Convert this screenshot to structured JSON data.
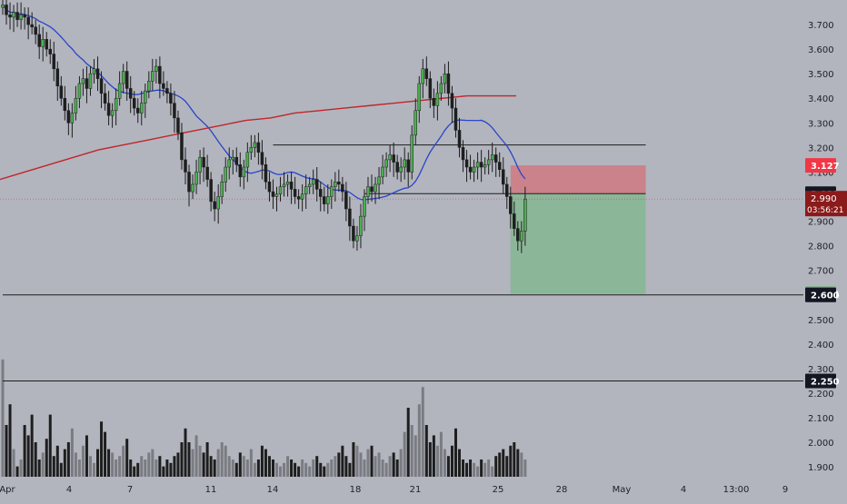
{
  "colors": {
    "background": "#b2b5be",
    "up_candle": "#4caf50",
    "down_candle": "#1e1e1e",
    "ma_fast": "#2a45c9",
    "ma_slow": "#c0262b",
    "stop_zone": "#e0585f",
    "target_zone": "#5db86a",
    "axis_text": "#1f1f24",
    "level_line": "#1e1e1e"
  },
  "price_axis": {
    "ticks": [
      "3.700",
      "3.600",
      "3.500",
      "3.400",
      "3.300",
      "3.200",
      "3.100",
      "3.000",
      "2.900",
      "2.800",
      "2.700",
      "2.600",
      "2.500",
      "2.400",
      "2.300",
      "2.200",
      "2.100",
      "2.000",
      "1.900"
    ],
    "tags": [
      {
        "label": "3.127",
        "price": 3.127,
        "bg": "#f23645",
        "fg": "#ffffff"
      },
      {
        "label": "3.012",
        "price": 3.012,
        "bg": "#131722",
        "fg": "#ffffff"
      },
      {
        "label": "2.604",
        "price": 2.604,
        "bg": "#4caf50",
        "fg": "#ffffff"
      },
      {
        "label": "2.600",
        "price": 2.6,
        "bg": "#131722",
        "fg": "#ffffff"
      },
      {
        "label": "2.250",
        "price": 2.25,
        "bg": "#131722",
        "fg": "#ffffff"
      }
    ],
    "current_price": {
      "price": "2.990",
      "countdown": "03:56:21",
      "bg": "#8b1a1a",
      "fg": "#ffffff"
    }
  },
  "time_axis": {
    "labels": [
      "Apr",
      "4",
      "7",
      "11",
      "14",
      "18",
      "21",
      "25",
      "28",
      "May",
      "4",
      "13:00",
      "9"
    ]
  },
  "chart_data": {
    "type": "candlestick",
    "series": [],
    "ylim": [
      1.86,
      3.8
    ],
    "horizontal_levels": [
      {
        "price": 3.21,
        "from_bar": 74,
        "to_bar": 176
      },
      {
        "price": 3.012,
        "from_bar": 99,
        "to_bar": 176
      },
      {
        "price": 2.6,
        "from_bar": 0,
        "to_bar": null
      },
      {
        "price": 2.25,
        "from_bar": 0,
        "to_bar": null
      }
    ],
    "position": {
      "entry": 3.012,
      "stop": 3.127,
      "target": 2.604,
      "from_bar": 139,
      "to_bar": 176
    },
    "candles_close": [
      3.78,
      3.74,
      3.73,
      3.75,
      3.72,
      3.74,
      3.73,
      3.7,
      3.69,
      3.66,
      3.61,
      3.64,
      3.6,
      3.58,
      3.52,
      3.45,
      3.4,
      3.35,
      3.3,
      3.34,
      3.4,
      3.46,
      3.48,
      3.44,
      3.5,
      3.52,
      3.48,
      3.42,
      3.38,
      3.33,
      3.35,
      3.4,
      3.46,
      3.51,
      3.44,
      3.4,
      3.36,
      3.34,
      3.38,
      3.43,
      3.47,
      3.51,
      3.53,
      3.46,
      3.44,
      3.42,
      3.38,
      3.32,
      3.26,
      3.15,
      3.1,
      3.02,
      3.05,
      3.1,
      3.16,
      3.12,
      3.07,
      2.98,
      2.95,
      3.0,
      3.06,
      3.12,
      3.15,
      3.16,
      3.13,
      3.08,
      3.12,
      3.18,
      3.2,
      3.22,
      3.18,
      3.13,
      3.06,
      3.02,
      3.0,
      3.01,
      3.04,
      3.05,
      3.06,
      3.03,
      3.0,
      2.99,
      3.01,
      3.04,
      3.05,
      3.07,
      3.03,
      3.0,
      2.97,
      3.0,
      3.04,
      3.06,
      3.05,
      3.02,
      2.95,
      2.88,
      2.82,
      2.84,
      2.92,
      3.0,
      3.04,
      3.02,
      3.05,
      3.08,
      3.12,
      3.15,
      3.17,
      3.14,
      3.1,
      3.12,
      3.15,
      3.1,
      3.25,
      3.35,
      3.46,
      3.52,
      3.48,
      3.4,
      3.37,
      3.42,
      3.46,
      3.5,
      3.42,
      3.36,
      3.27,
      3.2,
      3.15,
      3.12,
      3.1,
      3.12,
      3.14,
      3.12,
      3.13,
      3.15,
      3.17,
      3.14,
      3.11,
      3.05,
      3.0,
      2.93,
      2.87,
      2.82,
      2.86,
      2.99
    ],
    "candles_open": [
      3.77,
      3.78,
      3.74,
      3.73,
      3.75,
      3.72,
      3.74,
      3.73,
      3.7,
      3.69,
      3.66,
      3.61,
      3.64,
      3.6,
      3.58,
      3.52,
      3.45,
      3.4,
      3.35,
      3.3,
      3.34,
      3.4,
      3.46,
      3.48,
      3.44,
      3.5,
      3.52,
      3.48,
      3.42,
      3.38,
      3.33,
      3.35,
      3.4,
      3.46,
      3.51,
      3.44,
      3.4,
      3.36,
      3.34,
      3.38,
      3.43,
      3.47,
      3.51,
      3.53,
      3.46,
      3.44,
      3.42,
      3.38,
      3.32,
      3.26,
      3.15,
      3.1,
      3.02,
      3.05,
      3.1,
      3.16,
      3.12,
      3.07,
      2.98,
      2.95,
      3.0,
      3.06,
      3.12,
      3.15,
      3.16,
      3.13,
      3.08,
      3.12,
      3.18,
      3.2,
      3.22,
      3.18,
      3.13,
      3.06,
      3.02,
      3.0,
      3.01,
      3.04,
      3.05,
      3.06,
      3.03,
      3.0,
      2.99,
      3.01,
      3.04,
      3.05,
      3.07,
      3.03,
      3.0,
      2.97,
      3.0,
      3.04,
      3.06,
      3.05,
      3.02,
      2.95,
      2.88,
      2.82,
      2.84,
      2.92,
      3.0,
      3.04,
      3.02,
      3.05,
      3.08,
      3.12,
      3.15,
      3.17,
      3.14,
      3.1,
      3.12,
      3.15,
      3.1,
      3.25,
      3.35,
      3.46,
      3.52,
      3.48,
      3.4,
      3.37,
      3.42,
      3.46,
      3.5,
      3.42,
      3.36,
      3.27,
      3.2,
      3.15,
      3.12,
      3.1,
      3.12,
      3.14,
      3.12,
      3.13,
      3.15,
      3.17,
      3.14,
      3.11,
      3.05,
      3.0,
      2.93,
      2.87,
      2.82,
      2.86
    ],
    "volume": [
      3.4,
      1.5,
      2.1,
      0.8,
      0.3,
      0.5,
      1.5,
      1.2,
      1.8,
      1.0,
      0.5,
      0.7,
      1.1,
      1.8,
      0.6,
      0.9,
      0.4,
      0.8,
      1.0,
      1.4,
      0.7,
      0.5,
      0.9,
      1.2,
      0.6,
      0.4,
      0.8,
      1.6,
      1.3,
      0.8,
      0.7,
      0.5,
      0.6,
      0.9,
      1.1,
      0.5,
      0.3,
      0.4,
      0.6,
      0.5,
      0.7,
      0.8,
      0.5,
      0.6,
      0.3,
      0.5,
      0.4,
      0.6,
      0.7,
      1.0,
      1.4,
      1.0,
      0.8,
      1.2,
      0.9,
      0.7,
      1.0,
      0.6,
      0.5,
      0.8,
      1.0,
      0.9,
      0.6,
      0.5,
      0.4,
      0.7,
      0.6,
      0.5,
      0.8,
      0.4,
      0.5,
      0.9,
      0.8,
      0.6,
      0.5,
      0.4,
      0.3,
      0.4,
      0.6,
      0.5,
      0.4,
      0.3,
      0.5,
      0.4,
      0.3,
      0.5,
      0.6,
      0.4,
      0.3,
      0.4,
      0.5,
      0.6,
      0.7,
      0.9,
      0.6,
      0.4,
      1.0,
      0.9,
      0.7,
      0.5,
      0.8,
      0.9,
      0.6,
      0.7,
      0.5,
      0.4,
      0.6,
      0.7,
      0.5,
      0.8,
      1.3,
      2.0,
      1.5,
      1.2,
      2.1,
      2.6,
      1.5,
      1.0,
      1.2,
      0.9,
      1.3,
      0.8,
      0.6,
      0.9,
      1.4,
      0.8,
      0.5,
      0.4,
      0.5,
      0.4,
      0.3,
      0.5,
      0.4,
      0.5,
      0.3,
      0.6,
      0.7,
      0.8,
      0.6,
      0.9,
      1.0,
      0.8,
      0.7,
      0.5
    ]
  }
}
